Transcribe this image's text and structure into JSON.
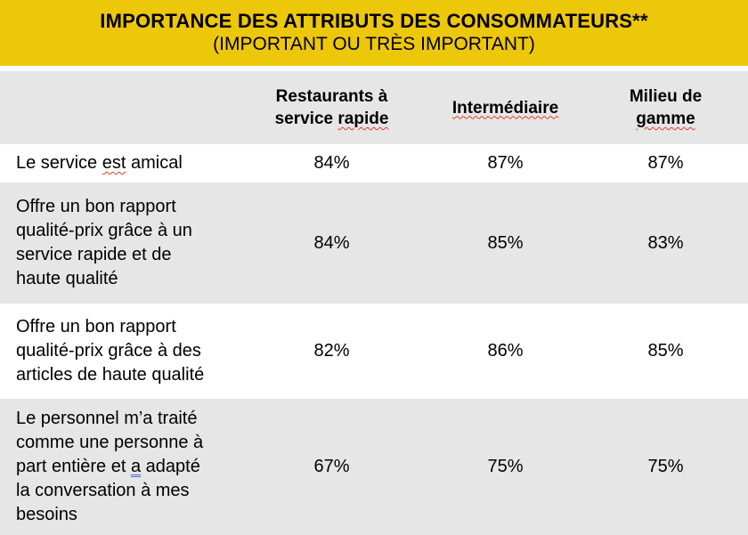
{
  "header": {
    "title": "IMPORTANCE DES ATTRIBUTS DES CONSOMMATEURS**",
    "subtitle": "(IMPORTANT OU TRÈS IMPORTANT)"
  },
  "colors": {
    "header_bg": "#EDC70A",
    "alt_row_bg": "#E6E6E6",
    "row_bg": "#FFFFFF",
    "text": "#000000",
    "spellcheck_red": "#E03B24",
    "grammar_blue": "#4472C4"
  },
  "chart_data": {
    "type": "table",
    "title": "IMPORTANCE DES ATTRIBUTS DES CONSOMMATEURS** (IMPORTANT OU TRÈS IMPORTANT)",
    "columns": [
      {
        "label": "Restaurants à service rapide",
        "segments": [
          {
            "text": "Restaurants à\nservice ",
            "mark": "none"
          },
          {
            "text": "rapide",
            "mark": "spell"
          }
        ]
      },
      {
        "label": "Intermédiaire",
        "segments": [
          {
            "text": "Intermédiaire",
            "mark": "spell"
          }
        ]
      },
      {
        "label": "Milieu de gamme",
        "segments": [
          {
            "text": "Milieu de\n",
            "mark": "none"
          },
          {
            "text": "gamme",
            "mark": "spell"
          }
        ]
      }
    ],
    "rows": [
      {
        "label": "Le service est amical",
        "segments": [
          {
            "text": "Le service ",
            "mark": "none"
          },
          {
            "text": "est",
            "mark": "spell"
          },
          {
            "text": " amical",
            "mark": "none"
          }
        ],
        "values": [
          "84%",
          "87%",
          "87%"
        ]
      },
      {
        "label": "Offre un bon rapport qualité-prix grâce à un service rapide et de haute qualité",
        "segments": [
          {
            "text": "Offre un bon rapport\nqualité-prix grâce à un\nservice rapide et de\nhaute qualité",
            "mark": "none"
          }
        ],
        "values": [
          "84%",
          "85%",
          "83%"
        ]
      },
      {
        "label": "Offre un bon rapport qualité-prix grâce à des articles de haute qualité",
        "segments": [
          {
            "text": "Offre un bon rapport\nqualité-prix grâce à des\narticles de haute qualité",
            "mark": "none"
          }
        ],
        "values": [
          "82%",
          "86%",
          "85%"
        ]
      },
      {
        "label": "Le personnel m’a traité comme une personne à part entière et a adapté la conversation à mes besoins",
        "segments": [
          {
            "text": "Le personnel m’a traité\ncomme une personne à\npart entière et ",
            "mark": "none"
          },
          {
            "text": "a",
            "mark": "grammar"
          },
          {
            "text": " adapté\nla conversation à mes\nbesoins",
            "mark": "none"
          }
        ],
        "values": [
          "67%",
          "75%",
          "75%"
        ]
      }
    ]
  }
}
